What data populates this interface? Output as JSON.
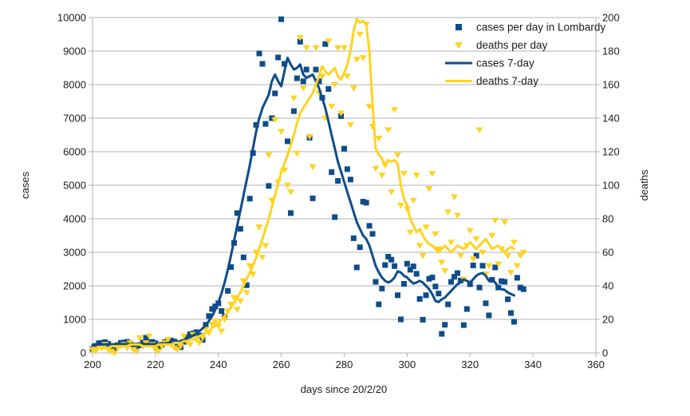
{
  "chart_data": {
    "type": "combo",
    "title": "",
    "grid": "horizontal",
    "legend_position": "top-right-inside",
    "x_axis": {
      "title": "days since 20/2/20",
      "min": 200,
      "max": 360,
      "ticks": [
        200,
        220,
        240,
        260,
        280,
        300,
        320,
        340,
        360
      ]
    },
    "y_left": {
      "title": "cases",
      "min": 0,
      "max": 10000,
      "ticks": [
        0,
        1000,
        2000,
        3000,
        4000,
        5000,
        6000,
        7000,
        8000,
        9000,
        10000
      ]
    },
    "y_right": {
      "title": "deaths",
      "min": 0,
      "max": 200,
      "ticks": [
        0,
        20,
        40,
        60,
        80,
        100,
        120,
        140,
        160,
        180,
        200
      ]
    },
    "colors": {
      "cases": "#0e4c8a",
      "deaths": "#ffd320",
      "grid": "#b3b3b3",
      "text": "#1c1c1c"
    },
    "days": [
      200,
      201,
      202,
      203,
      204,
      205,
      206,
      207,
      208,
      209,
      210,
      211,
      212,
      213,
      214,
      215,
      216,
      217,
      218,
      219,
      220,
      221,
      222,
      223,
      224,
      225,
      226,
      227,
      228,
      229,
      230,
      231,
      232,
      233,
      234,
      235,
      236,
      237,
      238,
      239,
      240,
      241,
      242,
      243,
      244,
      245,
      246,
      247,
      248,
      249,
      250,
      251,
      252,
      253,
      254,
      255,
      256,
      257,
      258,
      259,
      260,
      261,
      262,
      263,
      264,
      265,
      266,
      267,
      268,
      269,
      270,
      271,
      272,
      273,
      274,
      275,
      276,
      277,
      278,
      279,
      280,
      281,
      282,
      283,
      284,
      285,
      286,
      287,
      288,
      289,
      290,
      291,
      292,
      293,
      294,
      295,
      296,
      297,
      298,
      299,
      300,
      301,
      302,
      303,
      304,
      305,
      306,
      307,
      308,
      309,
      310,
      311,
      312,
      313,
      314,
      315,
      316,
      317,
      318,
      319,
      320,
      321,
      322,
      323,
      324,
      325,
      326,
      327,
      328,
      329,
      330,
      331,
      332,
      333,
      334,
      335,
      336,
      337
    ],
    "series": [
      {
        "name": "cases per day in Lombardy",
        "type": "scatter",
        "marker": "square",
        "axis": "left",
        "color_key": "cases",
        "values": [
          120,
          210,
          290,
          300,
          320,
          270,
          190,
          130,
          230,
          300,
          310,
          330,
          290,
          210,
          140,
          230,
          310,
          450,
          320,
          330,
          290,
          150,
          240,
          320,
          350,
          370,
          340,
          260,
          170,
          330,
          480,
          560,
          580,
          620,
          520,
          390,
          840,
          1100,
          1310,
          1390,
          1480,
          1250,
          1080,
          1850,
          2560,
          3280,
          4170,
          3700,
          2850,
          2020,
          4600,
          5960,
          6800,
          8930,
          8620,
          6830,
          4980,
          7000,
          7740,
          8810,
          9950,
          8620,
          6310,
          4170,
          7210,
          8190,
          9280,
          8100,
          8450,
          6420,
          4610,
          8450,
          8100,
          7610,
          9210,
          7870,
          5390,
          4050,
          5130,
          7060,
          6090,
          5480,
          5170,
          3420,
          2550,
          3150,
          4510,
          4480,
          3790,
          3550,
          2120,
          1450,
          1920,
          2620,
          2870,
          2780,
          2590,
          1720,
          1000,
          2060,
          2660,
          2480,
          2580,
          2360,
          1610,
          990,
          1720,
          2210,
          2250,
          1980,
          1770,
          570,
          840,
          1450,
          2120,
          2270,
          2380,
          2160,
          830,
          1310,
          2050,
          2610,
          2900,
          1950,
          2600,
          1480,
          1120,
          2180,
          2550,
          1950,
          2140,
          2120,
          1600,
          1190,
          930,
          2240,
          1950,
          1900
        ]
      },
      {
        "name": "deaths per day",
        "type": "scatter",
        "marker": "triangle-down",
        "axis": "right",
        "color_key": "deaths",
        "values": [
          2,
          1,
          4,
          3,
          5,
          2,
          1,
          0,
          3,
          4,
          5,
          3,
          6,
          2,
          1,
          9,
          4,
          6,
          10,
          5,
          2,
          1,
          4,
          6,
          8,
          5,
          3,
          2,
          4,
          10,
          7,
          5,
          11,
          8,
          6,
          9,
          14,
          12,
          17,
          19,
          16,
          13,
          20,
          25,
          29,
          33,
          26,
          31,
          43,
          36,
          52,
          47,
          60,
          75,
          57,
          64,
          118,
          91,
          139,
          102,
          132,
          109,
          100,
          96,
          152,
          119,
          188,
          158,
          182,
          129,
          111,
          182,
          155,
          165,
          140,
          186,
          147,
          160,
          182,
          143,
          182,
          165,
          136,
          158,
          175,
          190,
          176,
          196,
          147,
          135,
          110,
          128,
          106,
          112,
          133,
          96,
          145,
          118,
          88,
          107,
          86,
          72,
          91,
          106,
          64,
          58,
          75,
          98,
          107,
          71,
          62,
          54,
          49,
          84,
          66,
          93,
          82,
          58,
          44,
          64,
          73,
          56,
          68,
          133,
          60,
          47,
          52,
          70,
          79,
          53,
          62,
          78,
          58,
          48,
          66,
          52,
          58,
          60
        ]
      },
      {
        "name": "cases 7-day",
        "type": "line",
        "axis": "left",
        "color_key": "cases",
        "values": [
          240,
          245,
          250,
          252,
          255,
          255,
          258,
          260,
          262,
          265,
          265,
          268,
          270,
          272,
          270,
          268,
          265,
          262,
          260,
          262,
          265,
          270,
          278,
          285,
          295,
          305,
          320,
          335,
          355,
          380,
          420,
          465,
          520,
          580,
          650,
          730,
          830,
          950,
          1100,
          1280,
          1500,
          1780,
          2100,
          2480,
          2900,
          3350,
          3800,
          4250,
          4700,
          5150,
          5600,
          6100,
          6600,
          7000,
          7300,
          7500,
          7700,
          8100,
          8300,
          8100,
          7950,
          8400,
          8800,
          8600,
          8450,
          8500,
          8600,
          8300,
          8200,
          8250,
          8300,
          8100,
          7900,
          7600,
          7300,
          6900,
          6500,
          6100,
          5700,
          5400,
          5100,
          4800,
          4500,
          4200,
          3900,
          3700,
          3500,
          3400,
          3200,
          2900,
          2600,
          2400,
          2250,
          2150,
          2100,
          2150,
          2250,
          2430,
          2400,
          2300,
          2250,
          2150,
          2070,
          2100,
          2150,
          2100,
          2000,
          1900,
          1750,
          1550,
          1520,
          1600,
          1650,
          1750,
          1850,
          1950,
          2050,
          2100,
          2190,
          2150,
          2100,
          2200,
          2300,
          2360,
          2380,
          2300,
          2150,
          2180,
          2100,
          1950,
          1900,
          1880,
          1800,
          1760,
          1714
        ]
      },
      {
        "name": "deaths 7-day",
        "type": "line",
        "axis": "right",
        "color_key": "deaths",
        "values": [
          3,
          3,
          3,
          3,
          3,
          3,
          4,
          4,
          4,
          4,
          4,
          4,
          5,
          5,
          5,
          5,
          4,
          4,
          4,
          4,
          4,
          5,
          5,
          5,
          5,
          5,
          6,
          6,
          6,
          7,
          7,
          8,
          8,
          9,
          10,
          11,
          12,
          13,
          15,
          16,
          18,
          20,
          22,
          24,
          27,
          30,
          33,
          36,
          40,
          44,
          48,
          52,
          57,
          62,
          68,
          74,
          80,
          87,
          94,
          101,
          108,
          113,
          118,
          124,
          130,
          137,
          143,
          146,
          149,
          152,
          155,
          160,
          165,
          171,
          168,
          166,
          168,
          170,
          165,
          163,
          167,
          172,
          180,
          192,
          199,
          197,
          198,
          196,
          180,
          148,
          122,
          118,
          116,
          112,
          115,
          114,
          115,
          113,
          100,
          92,
          88,
          80,
          76,
          72,
          74,
          70,
          67,
          65,
          64,
          62,
          60,
          62,
          64,
          62,
          60,
          62,
          64,
          63,
          62,
          64,
          66,
          64,
          62,
          64,
          66,
          68,
          65,
          62,
          63,
          64,
          62,
          60,
          62,
          63,
          62
        ]
      }
    ]
  }
}
